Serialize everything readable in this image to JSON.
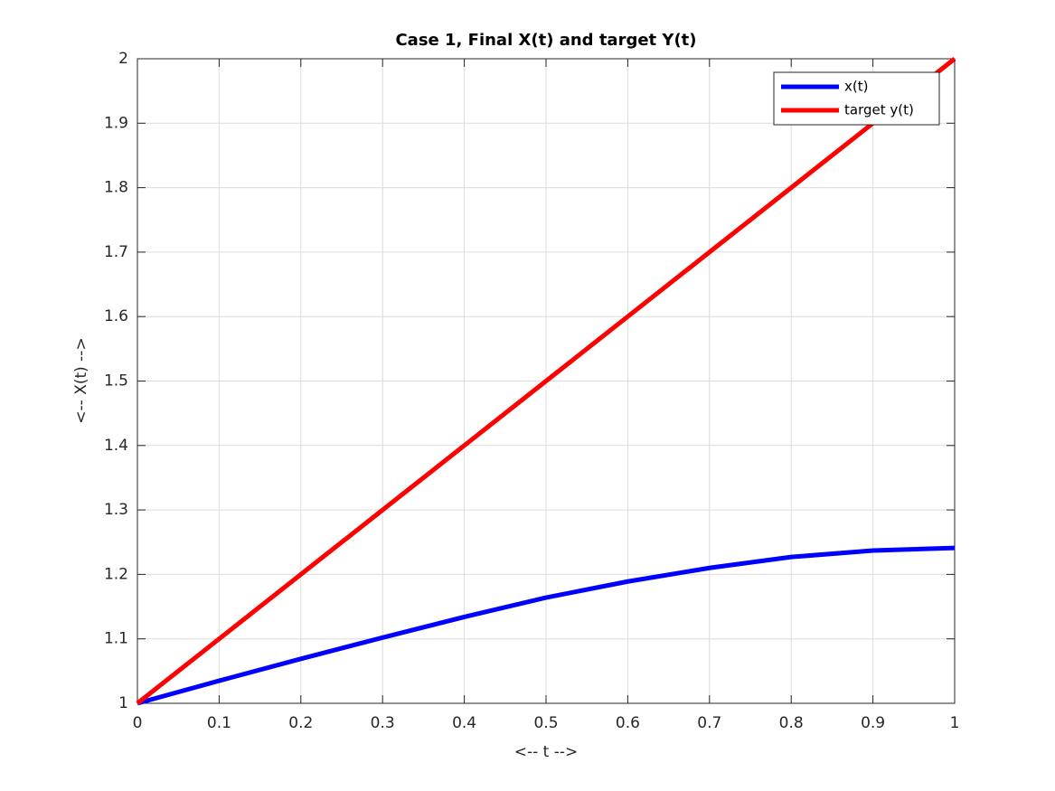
{
  "chart_data": {
    "type": "line",
    "title": "Case 1, Final X(t) and target Y(t)",
    "x_label": "<-- t -->",
    "y_label": "<-- X(t) -->",
    "x": [
      0,
      0.1,
      0.2,
      0.3,
      0.4,
      0.5,
      0.6,
      0.7,
      0.8,
      0.9,
      1
    ],
    "series": [
      {
        "name": "x(t)",
        "color": "#0000ff",
        "values": [
          1,
          1.035,
          1.069,
          1.102,
          1.134,
          1.164,
          1.189,
          1.21,
          1.227,
          1.237,
          1.241
        ]
      },
      {
        "name": "target y(t)",
        "color": "#ff0000",
        "values": [
          1,
          1.1,
          1.2,
          1.3,
          1.4,
          1.5,
          1.6,
          1.7,
          1.8,
          1.9,
          2
        ]
      }
    ],
    "xlim": [
      0,
      1
    ],
    "ylim": [
      1,
      2
    ],
    "xticks": [
      0,
      0.1,
      0.2,
      0.3,
      0.4,
      0.5,
      0.6,
      0.7,
      0.8,
      0.9,
      1
    ],
    "yticks": [
      1,
      1.1,
      1.2,
      1.3,
      1.4,
      1.5,
      1.6,
      1.7,
      1.8,
      1.9,
      2
    ],
    "grid": true,
    "legend_position": "northeast"
  }
}
